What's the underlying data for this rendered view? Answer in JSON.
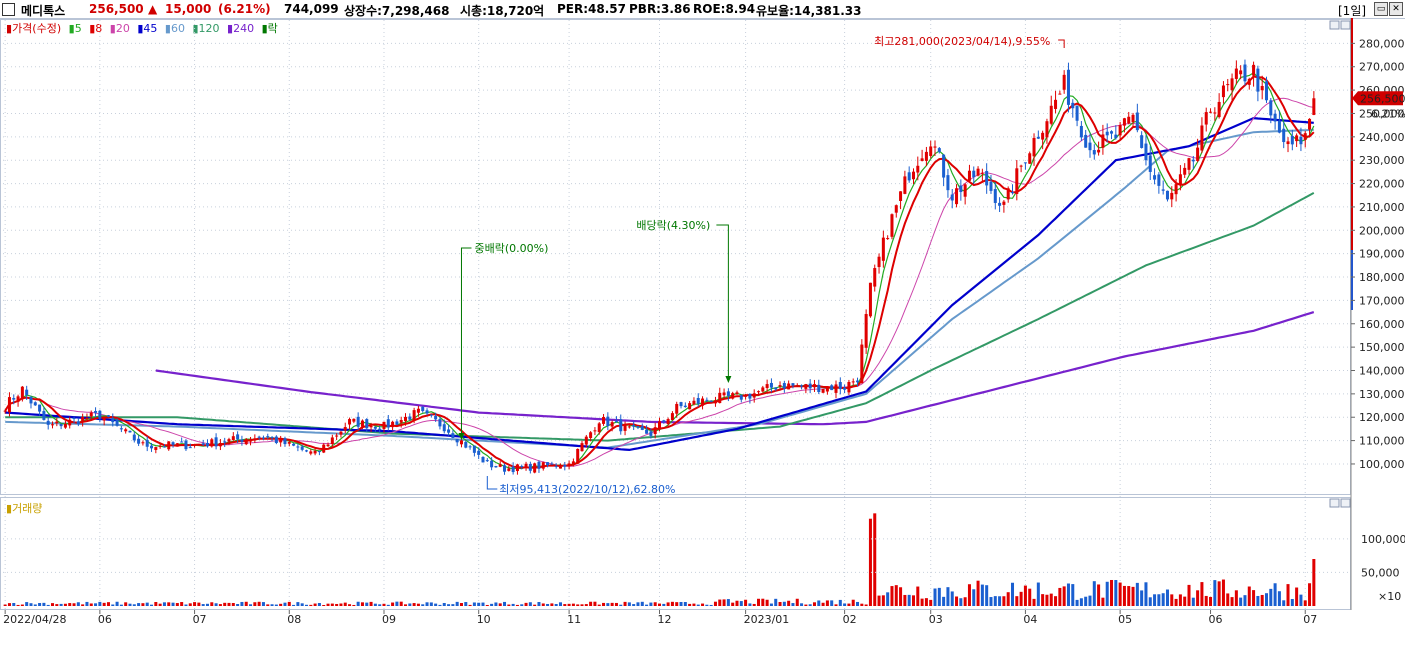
{
  "header": {
    "stock_name": "메디톡스",
    "price": "256,500",
    "change_arrow": "▲",
    "change": "15,000",
    "change_pct": "(6.21%)",
    "volume": "744,099",
    "listed_shares": "상장수:7,298,468",
    "market_cap": "시총:18,720억",
    "per": "PER:48.57",
    "pbr": "PBR:3.86",
    "roe": "ROE:8.94",
    "float": "유보율:14,381.33",
    "period": "[1일]"
  },
  "legend": {
    "price_label": "가격(수정)",
    "ma": [
      "5",
      "8",
      "20",
      "45",
      "60",
      "120",
      "240"
    ],
    "ma_colors": [
      "#22aa22",
      "#dd0000",
      "#cc44aa",
      "#0000cc",
      "#6699cc",
      "#339966",
      "#7722cc"
    ],
    "dividend_flag": "락"
  },
  "volume_label": "거래량",
  "annotations": {
    "high": "최고281,000(2023/04/14),9.55%",
    "low": "최저95,413(2022/10/12),62.80%",
    "stock_dividend": "중배락(0.00%)",
    "cash_dividend": "배당락(4.30%)",
    "current_price": "256,500",
    "current_pct": "6.21%",
    "vol_unit": "×10"
  },
  "chart_data": {
    "type": "candlestick",
    "y_ticks": [
      "280,000",
      "270,000",
      "260,000",
      "250,000",
      "240,000",
      "230,000",
      "220,000",
      "210,000",
      "200,000",
      "190,000",
      "180,000",
      "170,000",
      "160,000",
      "150,000",
      "140,000",
      "130,000",
      "120,000",
      "110,000",
      "100,000"
    ],
    "y_tick_values": [
      280000,
      270000,
      260000,
      250000,
      240000,
      230000,
      220000,
      210000,
      200000,
      190000,
      180000,
      170000,
      160000,
      150000,
      140000,
      130000,
      120000,
      110000,
      100000
    ],
    "ylim": [
      88000,
      290000
    ],
    "x_labels": [
      "2022/04/28",
      "06",
      "07",
      "08",
      "09",
      "10",
      "11",
      "12",
      "2023/01",
      "02",
      "03",
      "04",
      "05",
      "06",
      "07"
    ],
    "x_label_index": [
      0,
      22,
      44,
      66,
      88,
      110,
      131,
      152,
      172,
      195,
      215,
      237,
      259,
      280,
      302
    ],
    "n_days": 305,
    "close_anchors": [
      [
        0,
        125000
      ],
      [
        4,
        132000
      ],
      [
        10,
        116000
      ],
      [
        22,
        121000
      ],
      [
        32,
        108000
      ],
      [
        44,
        108000
      ],
      [
        60,
        112000
      ],
      [
        72,
        104000
      ],
      [
        80,
        118000
      ],
      [
        88,
        116000
      ],
      [
        96,
        122000
      ],
      [
        102,
        116000
      ],
      [
        112,
        100000
      ],
      [
        116,
        98000
      ],
      [
        124,
        99000
      ],
      [
        131,
        100000
      ],
      [
        138,
        119000
      ],
      [
        146,
        114000
      ],
      [
        150,
        113000
      ],
      [
        156,
        124000
      ],
      [
        164,
        128000
      ],
      [
        172,
        129000
      ],
      [
        180,
        134000
      ],
      [
        186,
        133000
      ],
      [
        195,
        133000
      ],
      [
        198,
        137000
      ],
      [
        201,
        175000
      ],
      [
        205,
        200000
      ],
      [
        210,
        225000
      ],
      [
        215,
        240000
      ],
      [
        220,
        215000
      ],
      [
        226,
        225000
      ],
      [
        232,
        210000
      ],
      [
        237,
        232000
      ],
      [
        246,
        262000
      ],
      [
        252,
        235000
      ],
      [
        258,
        240000
      ],
      [
        262,
        248000
      ],
      [
        266,
        225000
      ],
      [
        270,
        212000
      ],
      [
        276,
        230000
      ],
      [
        280,
        252000
      ],
      [
        286,
        265000
      ],
      [
        290,
        268000
      ],
      [
        294,
        248000
      ],
      [
        298,
        235000
      ],
      [
        302,
        240000
      ],
      [
        304,
        256500
      ]
    ],
    "ma_series": [
      {
        "name": "240",
        "anchors": [
          [
            35,
            140000
          ],
          [
            70,
            131000
          ],
          [
            110,
            122000
          ],
          [
            150,
            118000
          ],
          [
            190,
            117000
          ],
          [
            200,
            118000
          ],
          [
            230,
            132000
          ],
          [
            260,
            146000
          ],
          [
            290,
            157000
          ],
          [
            304,
            165000
          ]
        ]
      },
      {
        "name": "120",
        "anchors": [
          [
            0,
            120000
          ],
          [
            40,
            120000
          ],
          [
            90,
            113000
          ],
          [
            140,
            110000
          ],
          [
            180,
            116000
          ],
          [
            200,
            126000
          ],
          [
            215,
            140000
          ],
          [
            240,
            162000
          ],
          [
            265,
            185000
          ],
          [
            290,
            202000
          ],
          [
            304,
            216000
          ]
        ]
      },
      {
        "name": "60",
        "anchors": [
          [
            0,
            118000
          ],
          [
            40,
            116000
          ],
          [
            90,
            112000
          ],
          [
            140,
            107000
          ],
          [
            175,
            117000
          ],
          [
            200,
            130000
          ],
          [
            220,
            162000
          ],
          [
            240,
            188000
          ],
          [
            260,
            218000
          ],
          [
            270,
            234000
          ],
          [
            290,
            242000
          ],
          [
            304,
            243000
          ]
        ]
      },
      {
        "name": "45",
        "anchors": [
          [
            0,
            122000
          ],
          [
            40,
            117000
          ],
          [
            90,
            114000
          ],
          [
            145,
            106000
          ],
          [
            170,
            115000
          ],
          [
            200,
            131000
          ],
          [
            220,
            168000
          ],
          [
            240,
            198000
          ],
          [
            258,
            230000
          ],
          [
            275,
            236000
          ],
          [
            290,
            248000
          ],
          [
            304,
            246000
          ]
        ]
      }
    ],
    "volume_ylim": [
      0,
      140000
    ],
    "volume_ticks": [
      "100,000",
      "50,000"
    ],
    "volume_tick_values": [
      100000,
      50000
    ],
    "volume_spikes": [
      [
        201,
        130000
      ],
      [
        202,
        138000
      ],
      [
        304,
        70000
      ]
    ]
  }
}
